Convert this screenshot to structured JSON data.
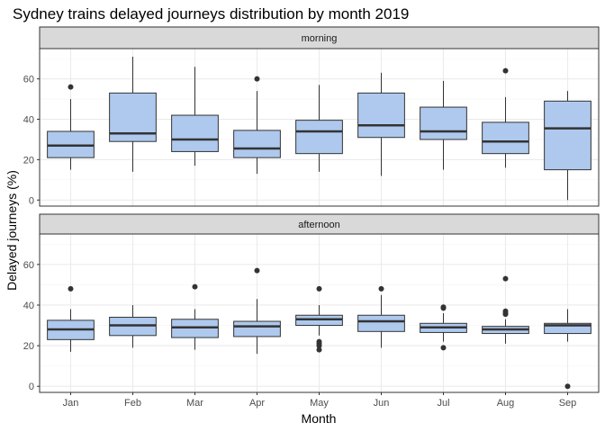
{
  "chart_data": {
    "type": "boxplot",
    "title": "Sydney trains delayed journeys distribution by month 2019",
    "xlabel": "Month",
    "ylabel": "Delayed journeys (%)",
    "categories": [
      "Jan",
      "Feb",
      "Mar",
      "Apr",
      "May",
      "Jun",
      "Jul",
      "Aug",
      "Sep"
    ],
    "ylim": [
      -3,
      75
    ],
    "yticks": [
      0,
      20,
      40,
      60
    ],
    "grid": true,
    "box_fill": "#aec9ed",
    "box_stroke": "#333333",
    "panel_border": "#333333",
    "grid_major": "#ebebeb",
    "grid_minor": "#f5f5f5",
    "strip_fill": "#d9d9d9",
    "facets": [
      {
        "label": "morning",
        "boxes": [
          {
            "category": "Jan",
            "min": 15,
            "q1": 21,
            "median": 27,
            "q3": 34,
            "max": 50,
            "outliers": [
              56
            ]
          },
          {
            "category": "Feb",
            "min": 14,
            "q1": 29,
            "median": 33,
            "q3": 53,
            "max": 71,
            "outliers": []
          },
          {
            "category": "Mar",
            "min": 17,
            "q1": 24,
            "median": 30,
            "q3": 42,
            "max": 66,
            "outliers": []
          },
          {
            "category": "Apr",
            "min": 13,
            "q1": 21,
            "median": 25.5,
            "q3": 34.5,
            "max": 54,
            "outliers": [
              60
            ]
          },
          {
            "category": "May",
            "min": 14,
            "q1": 23,
            "median": 34,
            "q3": 39.5,
            "max": 57,
            "outliers": []
          },
          {
            "category": "Jun",
            "min": 12,
            "q1": 31,
            "median": 37,
            "q3": 53,
            "max": 63,
            "outliers": []
          },
          {
            "category": "Jul",
            "min": 15,
            "q1": 30,
            "median": 34,
            "q3": 46,
            "max": 59,
            "outliers": []
          },
          {
            "category": "Aug",
            "min": 16,
            "q1": 23,
            "median": 29,
            "q3": 38.5,
            "max": 51,
            "outliers": [
              64
            ]
          },
          {
            "category": "Sep",
            "min": 0,
            "q1": 15,
            "median": 35.5,
            "q3": 49,
            "max": 54,
            "outliers": []
          }
        ]
      },
      {
        "label": "afternoon",
        "boxes": [
          {
            "category": "Jan",
            "min": 17,
            "q1": 23,
            "median": 28,
            "q3": 32.5,
            "max": 38,
            "outliers": [
              48
            ]
          },
          {
            "category": "Feb",
            "min": 19,
            "q1": 25,
            "median": 30,
            "q3": 34,
            "max": 40,
            "outliers": []
          },
          {
            "category": "Mar",
            "min": 18,
            "q1": 24,
            "median": 29,
            "q3": 33,
            "max": 38,
            "outliers": [
              49
            ]
          },
          {
            "category": "Apr",
            "min": 16,
            "q1": 24.5,
            "median": 29.5,
            "q3": 32,
            "max": 43,
            "outliers": [
              57
            ]
          },
          {
            "category": "May",
            "min": 25,
            "q1": 30,
            "median": 33,
            "q3": 35,
            "max": 40,
            "outliers": [
              48,
              22,
              21,
              20,
              18
            ]
          },
          {
            "category": "Jun",
            "min": 19,
            "q1": 27,
            "median": 32,
            "q3": 35,
            "max": 45,
            "outliers": [
              48
            ]
          },
          {
            "category": "Jul",
            "min": 22,
            "q1": 26.5,
            "median": 29,
            "q3": 31,
            "max": 36,
            "outliers": [
              39,
              38.5,
              19
            ]
          },
          {
            "category": "Aug",
            "min": 21,
            "q1": 26,
            "median": 28,
            "q3": 29.5,
            "max": 33,
            "outliers": [
              53,
              37,
              36,
              35.5
            ]
          },
          {
            "category": "Sep",
            "min": 22,
            "q1": 26,
            "median": 30,
            "q3": 31,
            "max": 38,
            "outliers": [
              0
            ]
          }
        ]
      }
    ]
  }
}
